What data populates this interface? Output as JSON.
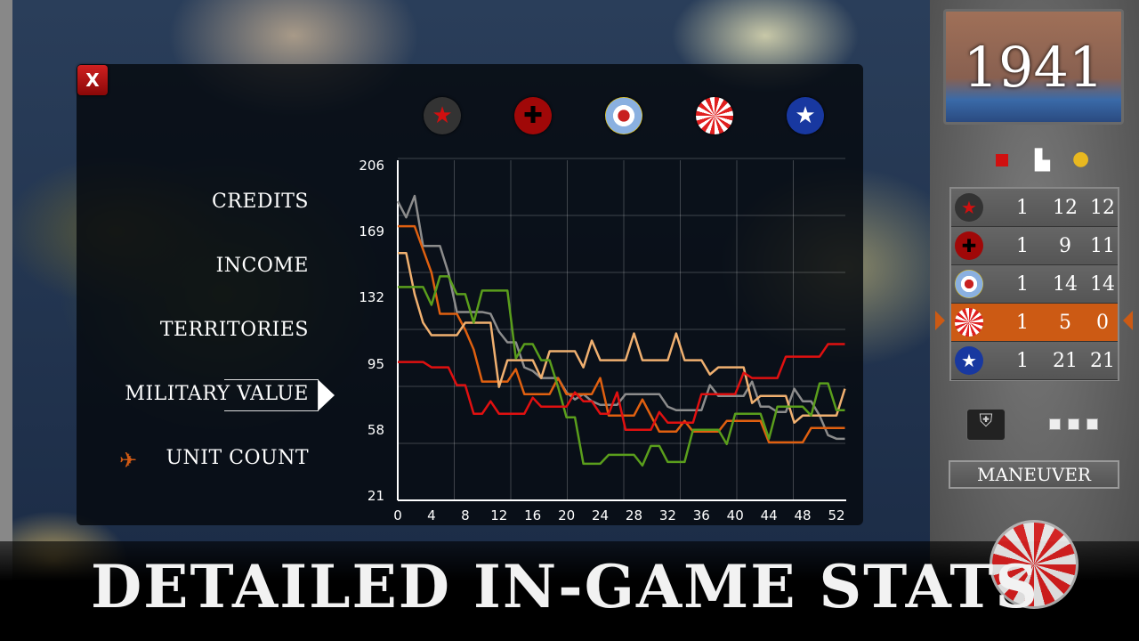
{
  "dialog": {
    "close_label": "X"
  },
  "factions": [
    {
      "icon": "red-star-roundel-icon",
      "bg": "#333",
      "fg": "#d01010",
      "glyph": "★"
    },
    {
      "icon": "iron-cross-roundel-icon",
      "bg": "#a00808",
      "fg": "#000",
      "glyph": "✚"
    },
    {
      "icon": "raf-roundel-icon",
      "bg": "#f0c800",
      "fg": "#c82020",
      "glyph": "●"
    },
    {
      "icon": "rising-sun-roundel-icon",
      "bg": "#e02020",
      "fg": "#fff",
      "glyph": "☀"
    },
    {
      "icon": "us-star-roundel-icon",
      "bg": "#1838a0",
      "fg": "#fff",
      "glyph": "★"
    }
  ],
  "menu": {
    "items": [
      "CREDITS",
      "INCOME",
      "TERRITORIES",
      "MILITARY VALUE",
      "UNIT COUNT"
    ],
    "selected": "MILITARY VALUE"
  },
  "chart_data": {
    "type": "line",
    "title": "",
    "xlabel": "",
    "ylabel": "",
    "xlim": [
      0,
      53
    ],
    "ylim": [
      21,
      206
    ],
    "x_ticks": [
      0,
      4,
      8,
      12,
      16,
      20,
      24,
      28,
      32,
      36,
      40,
      44,
      48,
      52
    ],
    "y_ticks": [
      21,
      58,
      95,
      132,
      169,
      206
    ],
    "grid": true,
    "series": [
      {
        "color": "#8c8c8c",
        "values": [
          186,
          177,
          189,
          161,
          161,
          161,
          146,
          124,
          124,
          124,
          124,
          123,
          113,
          107,
          107,
          93,
          91,
          87,
          87,
          87,
          79,
          75,
          78,
          74,
          72,
          72,
          72,
          78,
          78,
          78,
          78,
          78,
          71,
          69,
          69,
          69,
          69,
          83,
          77,
          77,
          77,
          77,
          85,
          71,
          71,
          68,
          68,
          81,
          74,
          74,
          66,
          55,
          53,
          53
        ]
      },
      {
        "color": "#e06010",
        "values": [
          172,
          172,
          172,
          159,
          146,
          123,
          123,
          123,
          114,
          103,
          85,
          85,
          85,
          85,
          92,
          78,
          78,
          78,
          78,
          87,
          78,
          78,
          78,
          78,
          87,
          66,
          66,
          66,
          66,
          75,
          66,
          57,
          57,
          57,
          63,
          57,
          57,
          57,
          57,
          63,
          63,
          63,
          63,
          63,
          51,
          51,
          51,
          51,
          51,
          59,
          59,
          59,
          59,
          59
        ]
      },
      {
        "color": "#f0b070",
        "values": [
          157,
          157,
          134,
          118,
          111,
          111,
          111,
          111,
          118,
          118,
          118,
          118,
          82,
          97,
          97,
          97,
          97,
          87,
          102,
          102,
          102,
          102,
          93,
          108,
          97,
          97,
          97,
          97,
          112,
          97,
          97,
          97,
          97,
          112,
          97,
          97,
          97,
          89,
          93,
          93,
          93,
          93,
          73,
          77,
          77,
          77,
          77,
          62,
          66,
          66,
          66,
          66,
          66,
          81
        ]
      },
      {
        "color": "#5a9e1c",
        "values": [
          138,
          138,
          138,
          138,
          128,
          144,
          144,
          134,
          134,
          118,
          136,
          136,
          136,
          136,
          98,
          106,
          106,
          97,
          97,
          82,
          65,
          65,
          39,
          39,
          39,
          44,
          44,
          44,
          44,
          38,
          49,
          49,
          40,
          40,
          40,
          58,
          58,
          58,
          58,
          50,
          67,
          67,
          67,
          67,
          53,
          71,
          71,
          71,
          71,
          66,
          84,
          84,
          69,
          69
        ]
      },
      {
        "color": "#e01010",
        "values": [
          96,
          96,
          96,
          96,
          93,
          93,
          93,
          83,
          83,
          67,
          67,
          74,
          67,
          67,
          67,
          67,
          76,
          71,
          71,
          71,
          71,
          79,
          74,
          74,
          67,
          67,
          79,
          58,
          58,
          58,
          58,
          68,
          62,
          62,
          62,
          62,
          78,
          78,
          78,
          78,
          78,
          90,
          87,
          87,
          87,
          87,
          99,
          99,
          99,
          99,
          99,
          106,
          106,
          106
        ]
      }
    ]
  },
  "sidebar": {
    "year": "1941",
    "header_icons": [
      "territory-icon",
      "factory-icon",
      "coins-icon"
    ],
    "rows": [
      {
        "faction": "red-star-roundel-icon",
        "values": [
          "1",
          "12",
          "12"
        ],
        "selected": false
      },
      {
        "faction": "iron-cross-roundel-icon",
        "values": [
          "1",
          "9",
          "11"
        ],
        "selected": false
      },
      {
        "faction": "raf-roundel-icon",
        "values": [
          "1",
          "14",
          "14"
        ],
        "selected": false
      },
      {
        "faction": "rising-sun-roundel-icon",
        "values": [
          "1",
          "5",
          "0"
        ],
        "selected": true
      },
      {
        "faction": "us-star-roundel-icon",
        "values": [
          "1",
          "21",
          "21"
        ],
        "selected": false
      }
    ],
    "phase_label": "MANEUVER"
  },
  "banner": {
    "headline": "DETAILED IN-GAME STATS"
  },
  "colors": {
    "accent": "#cc5a14",
    "close": "#c01010"
  }
}
